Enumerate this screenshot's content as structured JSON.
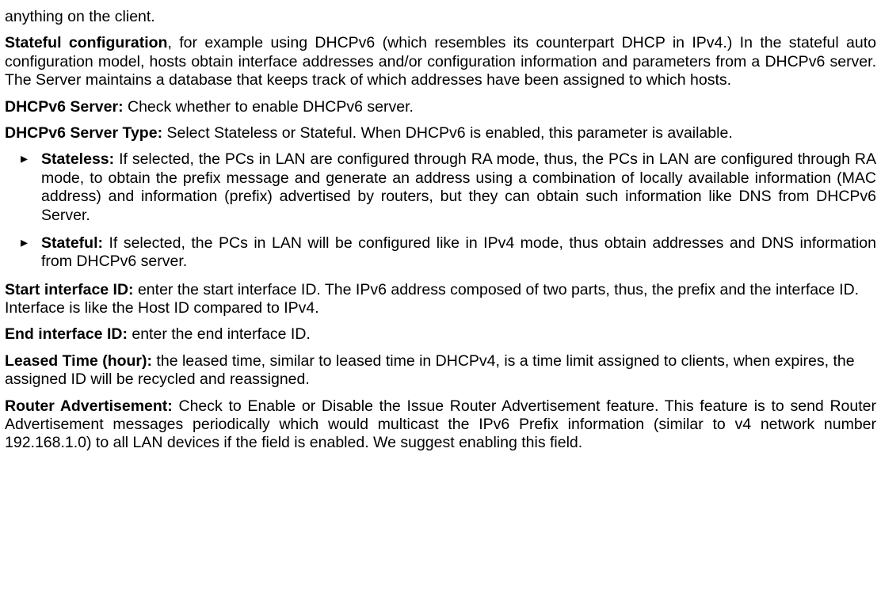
{
  "p_truncated": "anything on the client.",
  "p_stateful_lead": "Stateful configuration",
  "p_stateful_body": ", for example using DHCPv6 (which resembles its counterpart DHCP in IPv4.) In the stateful auto configuration model, hosts obtain interface addresses and/or configuration information and parameters from a DHCPv6 server. The Server maintains a database that keeps track of which addresses have been assigned to which hosts.",
  "p_dhcpv6_server_lead": "DHCPv6 Server:",
  "p_dhcpv6_server_body": " Check whether to enable DHCPv6 server.",
  "p_dhcpv6_type_lead": "DHCPv6 Server Type:",
  "p_dhcpv6_type_body": " Select Stateless or Stateful. When DHCPv6 is enabled, this parameter is available.",
  "li_stateless_lead": "Stateless:",
  "li_stateless_body": " If selected, the PCs in LAN are configured through RA mode, thus,  the PCs in LAN are configured through RA mode, to obtain the prefix message and generate an address using a combination of locally available information (MAC address) and information (prefix) advertised by routers, but they can obtain such information like DNS from DHCPv6 Server.",
  "li_stateful_lead": "Stateful:",
  "li_stateful_body": " If selected, the PCs in LAN will be configured like in IPv4 mode, thus obtain addresses and DNS information from DHCPv6 server.",
  "p_start_id_lead": "Start interface ID:",
  "p_start_id_body": " enter the start interface ID. The IPv6 address composed of two parts, thus, the prefix and the interface ID. Interface is like the Host ID compared to IPv4.",
  "p_end_id_lead": "End interface ID:",
  "p_end_id_body": " enter the end interface ID.",
  "p_leased_lead": "Leased Time (hour):",
  "p_leased_body": " the leased time, similar to leased time in DHCPv4, is a time limit assigned to clients, when expires, the assigned ID will be recycled and reassigned.",
  "p_ra_lead": "Router Advertisement:",
  "p_ra_body": " Check to Enable or Disable the Issue Router Advertisement feature. This feature is to send Router Advertisement messages periodically which would multicast the IPv6 Prefix information (similar to v4 network number 192.168.1.0) to all LAN devices if the field is enabled. We suggest enabling this field."
}
